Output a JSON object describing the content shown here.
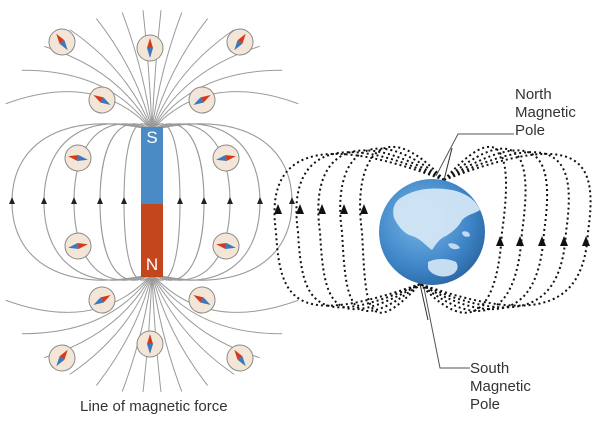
{
  "magnet": {
    "north_label": "N",
    "south_label": "S",
    "colors": {
      "north": "#c4461c",
      "south": "#4a8bc6"
    }
  },
  "caption": "Line of magnetic force",
  "earth": {
    "north_pole_label": [
      "North",
      "Magnetic",
      "Pole"
    ],
    "south_pole_label": [
      "South",
      "Magnetic",
      "Pole"
    ],
    "colors": {
      "ocean": "#3f86c8",
      "land": "#cfe3f3"
    }
  },
  "compass_count": 14,
  "icons": [
    "compass-icon",
    "arrow-icon"
  ]
}
